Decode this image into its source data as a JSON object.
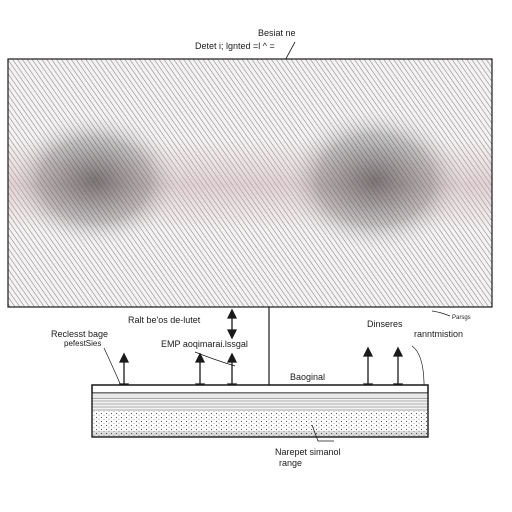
{
  "labels": {
    "top_title": "Besiat ne",
    "top_subtitle": "Detet i; lgnted =l ^ =",
    "center_left": "Ralt be'os de-lutet",
    "center_mid": "EMP aoqimarai.lssgal",
    "center_right": "Dinseres",
    "left_top": "Reclesst bage",
    "left_bottom": "pefestSies",
    "right_small": "Parsgs",
    "right_main": "ranntmistion",
    "base_label": "Baoginal",
    "bottom_top": "Narepet simanol",
    "bottom_bottom": "range"
  },
  "colors": {
    "pattern_tint": "#c9a9b0",
    "line": "#1a1a1a",
    "background": "#ffffff"
  }
}
